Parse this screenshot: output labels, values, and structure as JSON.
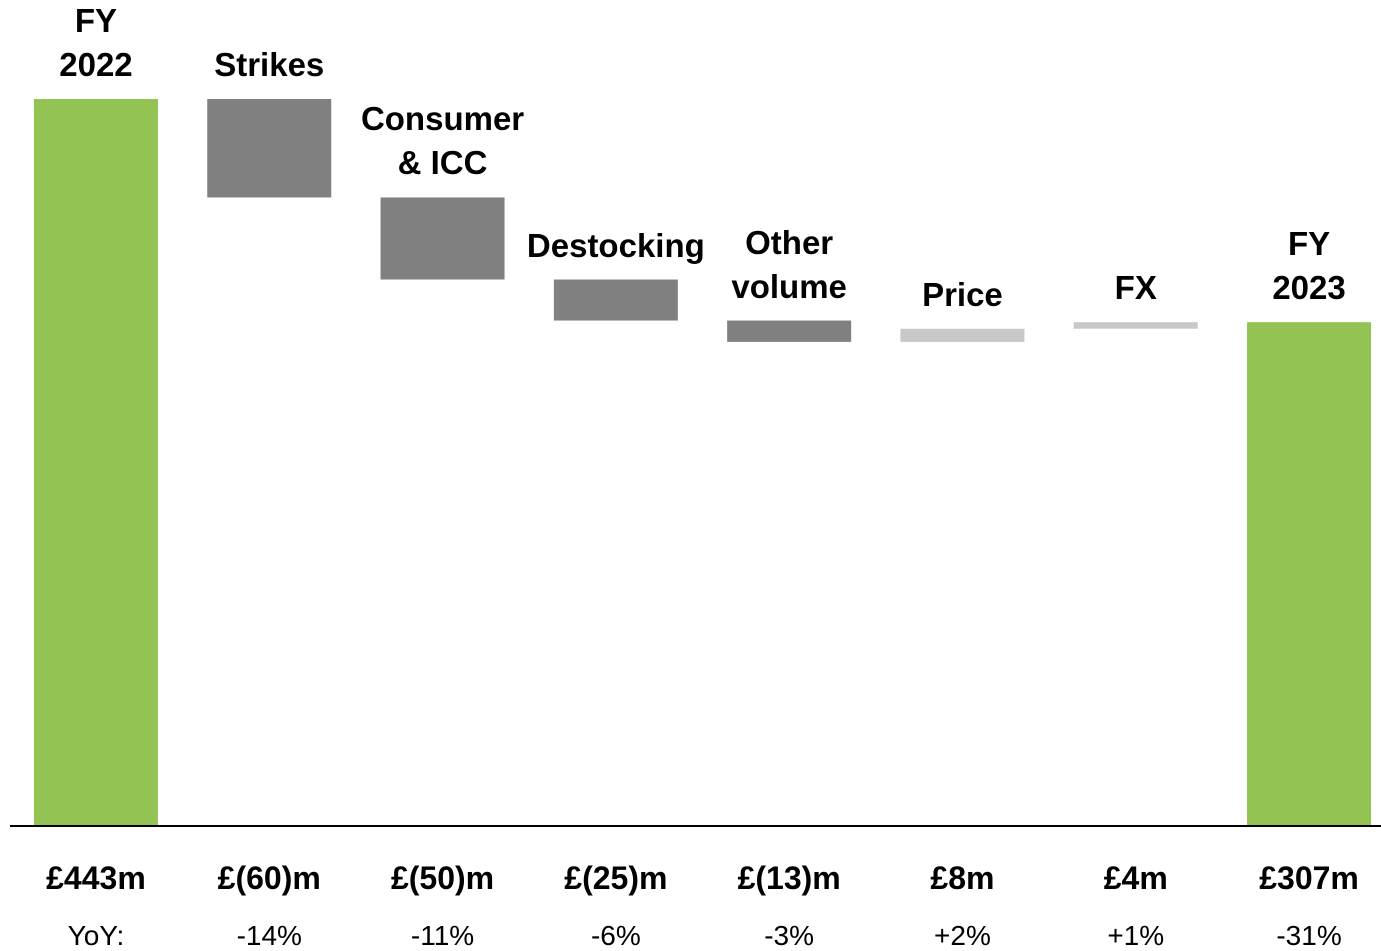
{
  "chart_data": {
    "type": "waterfall",
    "categories": [
      "FY\n2022",
      "Strikes",
      "Consumer\n& ICC",
      "Destocking",
      "Other\nvolume",
      "Price",
      "FX",
      "FY\n2023"
    ],
    "values": [
      443,
      -60,
      -50,
      -25,
      -13,
      8,
      4,
      307
    ],
    "value_labels": [
      "£443m",
      "£(60)m",
      "£(50)m",
      "£(25)m",
      "£(13)m",
      "£8m",
      "£4m",
      "£307m"
    ],
    "measure": [
      "total",
      "relative",
      "relative",
      "relative",
      "relative",
      "relative",
      "relative",
      "total"
    ],
    "colors": {
      "total": "#92c353",
      "decrease": "#808080",
      "increase": "#c8c8c8"
    },
    "yoy": {
      "label": "YoY:",
      "values": [
        null,
        -14,
        -11,
        -6,
        -3,
        2,
        1,
        -31
      ],
      "value_labels": [
        null,
        "-14%",
        "-11%",
        "-6%",
        "-3%",
        "+2%",
        "+1%",
        "-31%"
      ]
    }
  }
}
